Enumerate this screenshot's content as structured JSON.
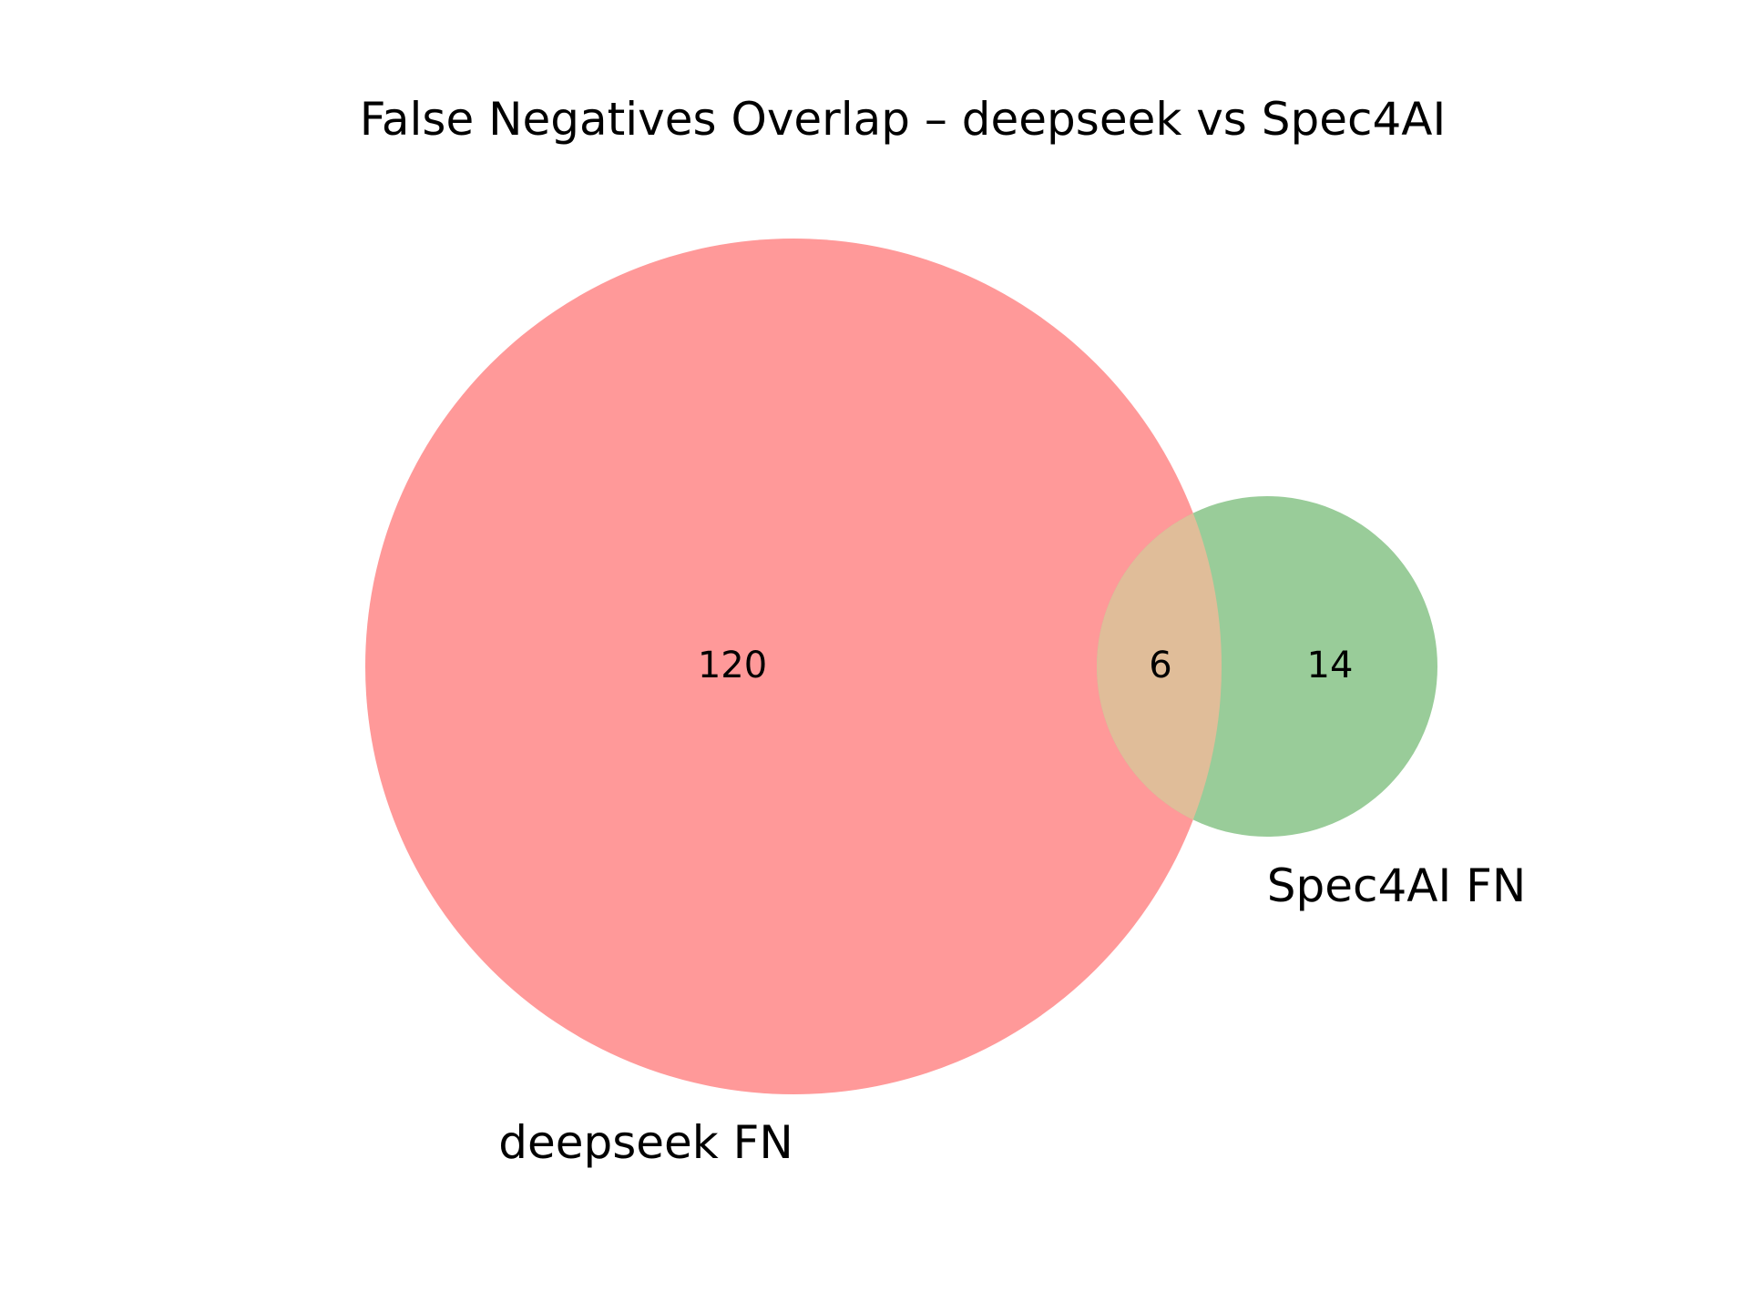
{
  "chart_data": {
    "type": "venn",
    "title": "False Negatives Overlap – deepseek vs Spec4AI",
    "sets": [
      {
        "name": "deepseek FN",
        "only": 120,
        "color": "#ff9999"
      },
      {
        "name": "Spec4AI FN",
        "only": 14,
        "color": "#99cc99"
      }
    ],
    "intersection": 6,
    "intersection_color": "#e0bd99",
    "region_labels": {
      "a_only": "120",
      "intersection": "6",
      "b_only": "14"
    }
  }
}
